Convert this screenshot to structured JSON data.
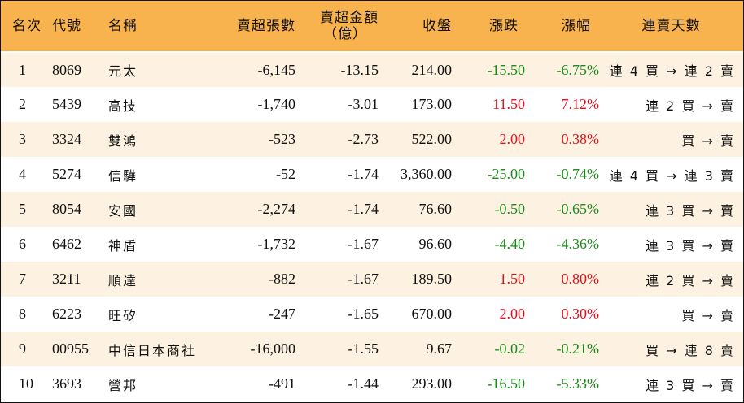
{
  "headers": {
    "rank": "名次",
    "code": "代號",
    "name": "名稱",
    "net_sell_shares": "賣超張數",
    "net_sell_amount_line1": "賣超金額",
    "net_sell_amount_line2": "（億）",
    "close": "收盤",
    "change": "漲跌",
    "change_pct": "漲幅",
    "streak": "連賣天數"
  },
  "rows": [
    {
      "rank": "1",
      "code": "8069",
      "name": "元太",
      "shares": "-6,145",
      "amount": "-13.15",
      "close": "214.00",
      "change": "-15.50",
      "pct": "-6.75%",
      "dir": "neg",
      "streak": "連 4 買 → 連 2 賣"
    },
    {
      "rank": "2",
      "code": "5439",
      "name": "高技",
      "shares": "-1,740",
      "amount": "-3.01",
      "close": "173.00",
      "change": "11.50",
      "pct": "7.12%",
      "dir": "pos",
      "streak": "連 2 買 → 賣"
    },
    {
      "rank": "3",
      "code": "3324",
      "name": "雙鴻",
      "shares": "-523",
      "amount": "-2.73",
      "close": "522.00",
      "change": "2.00",
      "pct": "0.38%",
      "dir": "pos",
      "streak": "買 → 賣"
    },
    {
      "rank": "4",
      "code": "5274",
      "name": "信驊",
      "shares": "-52",
      "amount": "-1.74",
      "close": "3,360.00",
      "change": "-25.00",
      "pct": "-0.74%",
      "dir": "neg",
      "streak": "連 4 買 → 連 3 賣"
    },
    {
      "rank": "5",
      "code": "8054",
      "name": "安國",
      "shares": "-2,274",
      "amount": "-1.74",
      "close": "76.60",
      "change": "-0.50",
      "pct": "-0.65%",
      "dir": "neg",
      "streak": "連 3 買 → 賣"
    },
    {
      "rank": "6",
      "code": "6462",
      "name": "神盾",
      "shares": "-1,732",
      "amount": "-1.67",
      "close": "96.60",
      "change": "-4.40",
      "pct": "-4.36%",
      "dir": "neg",
      "streak": "連 3 買 → 賣"
    },
    {
      "rank": "7",
      "code": "3211",
      "name": "順達",
      "shares": "-882",
      "amount": "-1.67",
      "close": "189.50",
      "change": "1.50",
      "pct": "0.80%",
      "dir": "pos",
      "streak": "連 2 買 → 賣"
    },
    {
      "rank": "8",
      "code": "6223",
      "name": "旺矽",
      "shares": "-247",
      "amount": "-1.65",
      "close": "670.00",
      "change": "2.00",
      "pct": "0.30%",
      "dir": "pos",
      "streak": "買 → 賣"
    },
    {
      "rank": "9",
      "code": "00955",
      "name": "中信日本商社",
      "shares": "-16,000",
      "amount": "-1.55",
      "close": "9.67",
      "change": "-0.02",
      "pct": "-0.21%",
      "dir": "neg",
      "streak": "買 → 連 8 賣"
    },
    {
      "rank": "10",
      "code": "3693",
      "name": "營邦",
      "shares": "-491",
      "amount": "-1.44",
      "close": "293.00",
      "change": "-16.50",
      "pct": "-5.33%",
      "dir": "neg",
      "streak": "連 3 買 → 賣"
    }
  ],
  "colors": {
    "header_bg": "#f8b24e",
    "odd_row_bg": "#fdf2e1",
    "positive": "#e0101c",
    "negative": "#1a8a1a"
  }
}
